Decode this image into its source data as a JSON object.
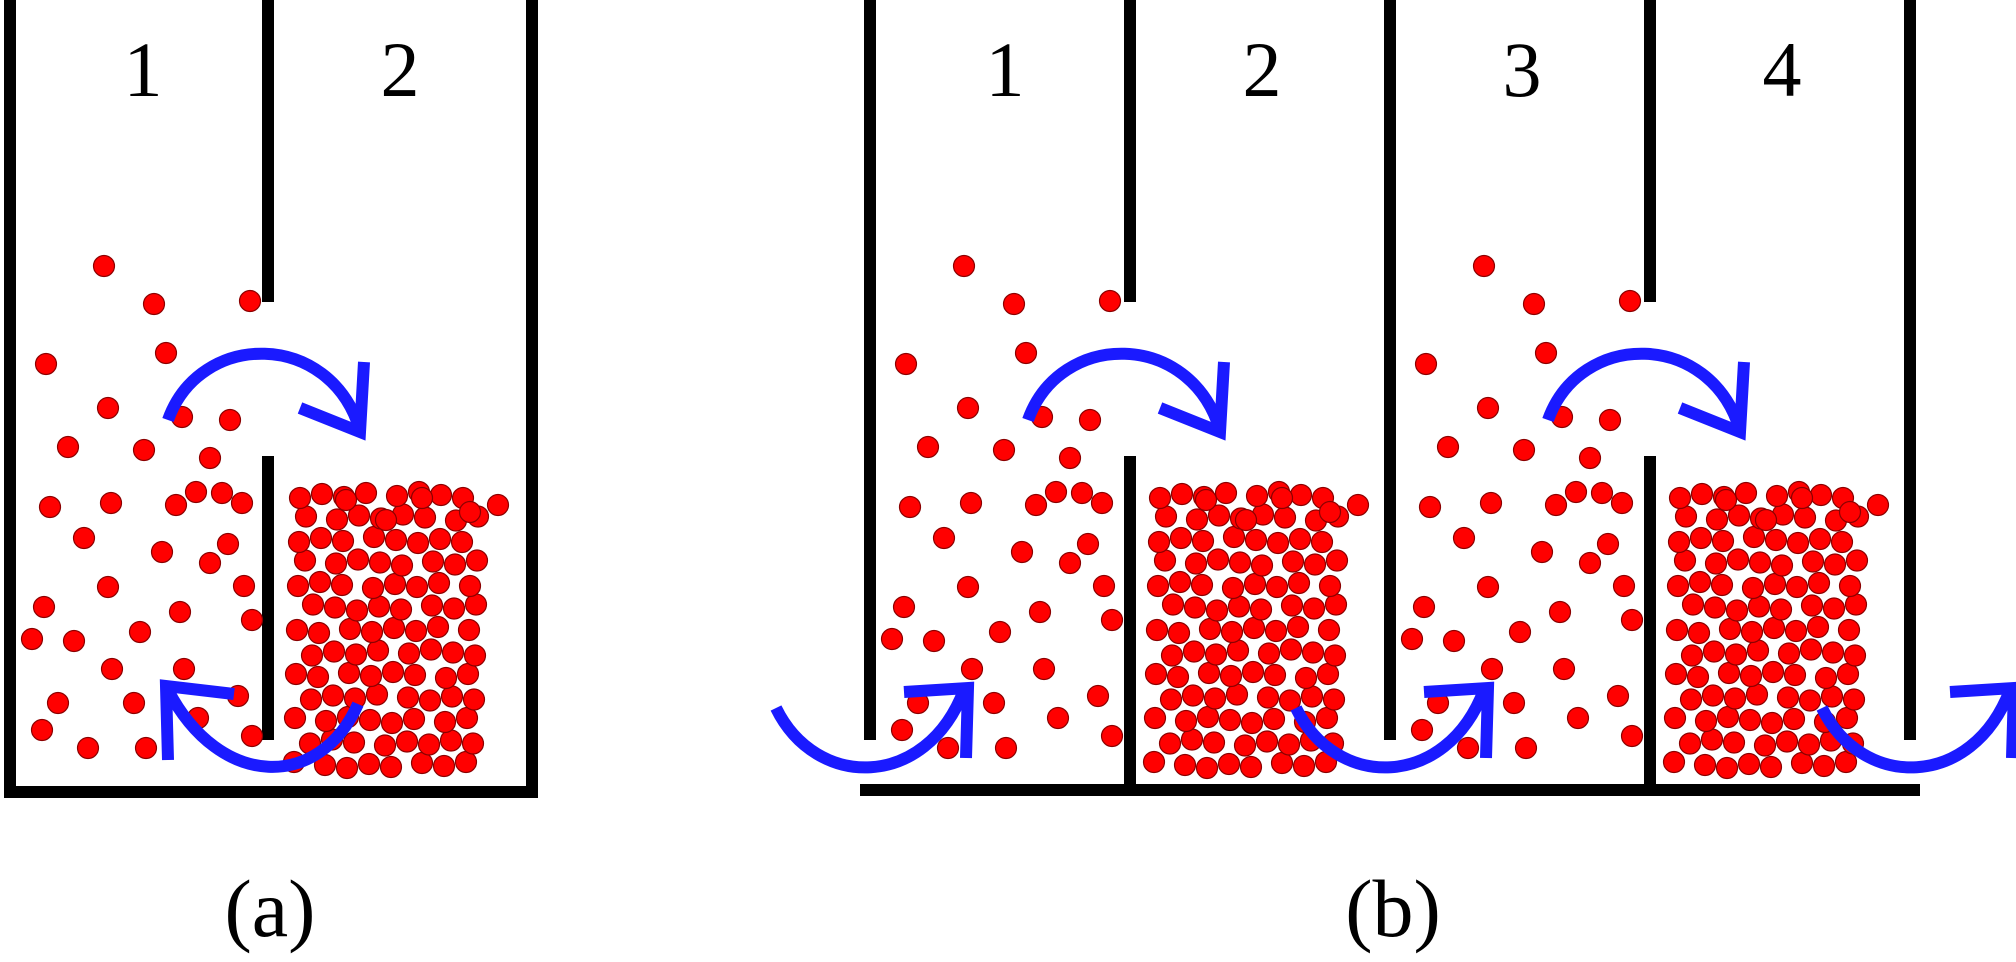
{
  "panel_a": {
    "compartment_labels": [
      "1",
      "2"
    ],
    "caption": "(a)"
  },
  "panel_b": {
    "compartment_labels": [
      "1",
      "2",
      "3",
      "4"
    ],
    "caption": "(b)"
  },
  "colors": {
    "particle": "#ff0000",
    "arrow": "#1a1aff",
    "wall": "#000000"
  }
}
